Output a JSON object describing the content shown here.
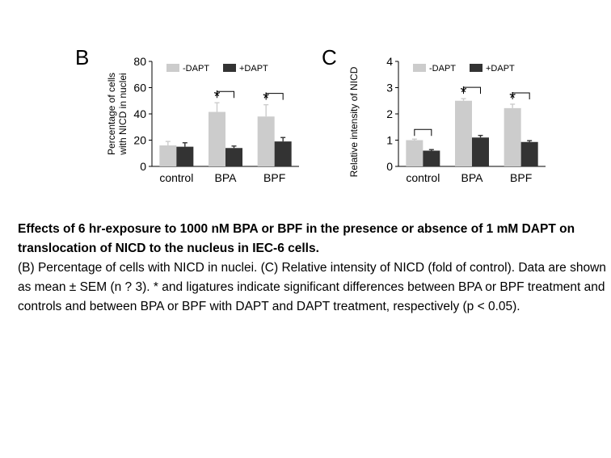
{
  "chart_data": [
    {
      "type": "bar",
      "panel_letter": "B",
      "ylabel_line1": "Percentage of cells",
      "ylabel_line2": "with NICD in nuclei",
      "ylim": [
        0,
        80
      ],
      "yticks": [
        "0",
        "20",
        "40",
        "60",
        "80"
      ],
      "categories": [
        "control",
        "BPA",
        "BPF"
      ],
      "series": [
        {
          "name": "-DAPT",
          "color": "#cccccc",
          "values": [
            16,
            41.5,
            38
          ],
          "errors": [
            3,
            7,
            9
          ]
        },
        {
          "name": "+DAPT",
          "color": "#333333",
          "values": [
            15,
            14,
            19
          ],
          "errors": [
            3,
            1.5,
            3
          ]
        }
      ],
      "significance": [
        "",
        "*",
        "*"
      ],
      "ligatures": [
        false,
        true,
        true
      ],
      "legend": "top"
    },
    {
      "type": "bar",
      "panel_letter": "C",
      "ylabel_line1": "Relative intensity of NICD",
      "ylabel_line2": "",
      "ylim": [
        0,
        4
      ],
      "yticks": [
        "0",
        "1",
        "2",
        "3",
        "4"
      ],
      "categories": [
        "control",
        "BPA",
        "BPF"
      ],
      "series": [
        {
          "name": "-DAPT",
          "color": "#cccccc",
          "values": [
            1.0,
            2.5,
            2.22
          ],
          "errors": [
            0.04,
            0.08,
            0.15
          ]
        },
        {
          "name": "+DAPT",
          "color": "#333333",
          "values": [
            0.6,
            1.1,
            0.93
          ],
          "errors": [
            0.04,
            0.08,
            0.05
          ]
        }
      ],
      "significance": [
        "",
        "*",
        "*"
      ],
      "ligatures": [
        true,
        true,
        true
      ],
      "legend": "top"
    }
  ],
  "caption": {
    "bold_line": "Effects of 6 hr-exposure to 1000 nM BPA or BPF in the presence or absence of 1 mM DAPT on translocation of NICD to the nucleus in IEC-6 cells.",
    "body": "(B) Percentage of cells with NICD in nuclei. (C) Relative intensity of NICD (fold of control). Data are shown as mean ± SEM (n ? 3). * and ligatures indicate significant differences between BPA or BPF treatment and controls and between BPA or BPF with DAPT and DAPT treatment, respectively (p < 0.05)."
  }
}
